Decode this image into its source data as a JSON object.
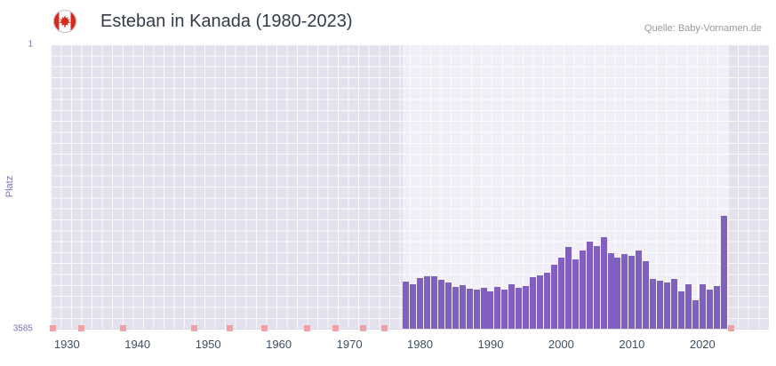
{
  "header": {
    "title": "Esteban in Kanada (1980-2023)",
    "source": "Quelle: Baby-Vornamen.de",
    "flag_red": "#d52b1e",
    "flag_white": "#ffffff"
  },
  "chart_data": {
    "type": "bar",
    "title": "Esteban in Kanada (1980-2023)",
    "ylabel": "Platz",
    "yticks": [
      1,
      3585
    ],
    "ylim": [
      1,
      3585
    ],
    "y_inverted": true,
    "xticks": [
      1930,
      1940,
      1950,
      1960,
      1970,
      1980,
      1990,
      2000,
      2010,
      2020
    ],
    "x_range": [
      1927.7,
      2029.4
    ],
    "highlight_range": [
      1977.5,
      2023.5
    ],
    "grid": true,
    "bar_color": "#8160c0",
    "rare_marker_color": "#f1a0a6",
    "plot_background": "#e4e1ee",
    "series": [
      {
        "year": 1978,
        "rank": 2990
      },
      {
        "year": 1979,
        "rank": 3025
      },
      {
        "year": 1980,
        "rank": 2945
      },
      {
        "year": 1981,
        "rank": 2925
      },
      {
        "year": 1982,
        "rank": 2925
      },
      {
        "year": 1983,
        "rank": 2970
      },
      {
        "year": 1984,
        "rank": 3000
      },
      {
        "year": 1985,
        "rank": 3060
      },
      {
        "year": 1986,
        "rank": 3035
      },
      {
        "year": 1987,
        "rank": 3080
      },
      {
        "year": 1988,
        "rank": 3090
      },
      {
        "year": 1989,
        "rank": 3070
      },
      {
        "year": 1990,
        "rank": 3115
      },
      {
        "year": 1991,
        "rank": 3060
      },
      {
        "year": 1992,
        "rank": 3090
      },
      {
        "year": 1993,
        "rank": 3025
      },
      {
        "year": 1994,
        "rank": 3070
      },
      {
        "year": 1995,
        "rank": 3045
      },
      {
        "year": 1996,
        "rank": 2935
      },
      {
        "year": 1997,
        "rank": 2915
      },
      {
        "year": 1998,
        "rank": 2880
      },
      {
        "year": 1999,
        "rank": 2780
      },
      {
        "year": 2000,
        "rank": 2690
      },
      {
        "year": 2001,
        "rank": 2555
      },
      {
        "year": 2002,
        "rank": 2710
      },
      {
        "year": 2003,
        "rank": 2600
      },
      {
        "year": 2004,
        "rank": 2490
      },
      {
        "year": 2005,
        "rank": 2545
      },
      {
        "year": 2006,
        "rank": 2430
      },
      {
        "year": 2007,
        "rank": 2635
      },
      {
        "year": 2008,
        "rank": 2690
      },
      {
        "year": 2009,
        "rank": 2645
      },
      {
        "year": 2010,
        "rank": 2665
      },
      {
        "year": 2011,
        "rank": 2600
      },
      {
        "year": 2012,
        "rank": 2735
      },
      {
        "year": 2013,
        "rank": 2955
      },
      {
        "year": 2014,
        "rank": 2980
      },
      {
        "year": 2015,
        "rank": 3000
      },
      {
        "year": 2016,
        "rank": 2955
      },
      {
        "year": 2017,
        "rank": 3115
      },
      {
        "year": 2018,
        "rank": 3025
      },
      {
        "year": 2019,
        "rank": 3225
      },
      {
        "year": 2020,
        "rank": 3025
      },
      {
        "year": 2021,
        "rank": 3090
      },
      {
        "year": 2022,
        "rank": 3045
      },
      {
        "year": 2023,
        "rank": 2165
      }
    ],
    "rare_years": [
      1928,
      1932,
      1938,
      1948,
      1953,
      1958,
      1964,
      1968,
      1972,
      1975,
      2024
    ]
  }
}
